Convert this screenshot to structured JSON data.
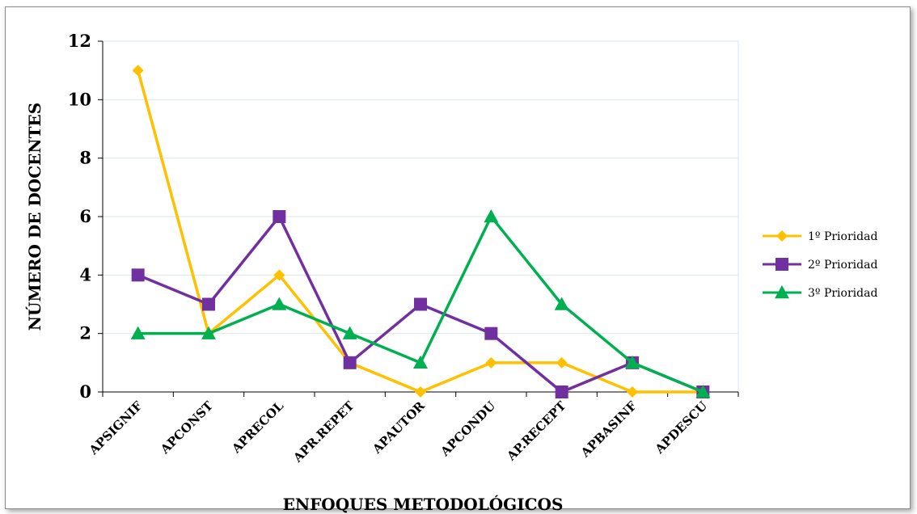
{
  "chart_data": {
    "type": "line",
    "title": "",
    "xlabel": "ENFOQUES METODOLÓGICOS",
    "ylabel": "NÚMERO DE DOCENTES",
    "ylim": [
      0,
      12
    ],
    "yticks": [
      "0",
      "2",
      "4",
      "6",
      "8",
      "10",
      "12"
    ],
    "categories": [
      "APSIGNIF",
      "APCONST",
      "APRECOL",
      "APR.REPET",
      "APAUTOR",
      "APCONDU",
      "AP.RECEPT",
      "APBASINF",
      "APDESCU"
    ],
    "grid": "horizontal",
    "legend_position": "right",
    "series": [
      {
        "name": "1º Prioridad",
        "color": "#FFC000",
        "marker": "diamond",
        "values": [
          11,
          2,
          4,
          1,
          0,
          1,
          1,
          0,
          0
        ]
      },
      {
        "name": "2º Prioridad",
        "color": "#7030A0",
        "marker": "square",
        "values": [
          4,
          3,
          6,
          1,
          3,
          2,
          0,
          1,
          0
        ]
      },
      {
        "name": "3º Prioridad",
        "color": "#00B050",
        "marker": "triangle",
        "values": [
          2,
          2,
          3,
          2,
          1,
          6,
          3,
          1,
          0
        ]
      }
    ]
  }
}
